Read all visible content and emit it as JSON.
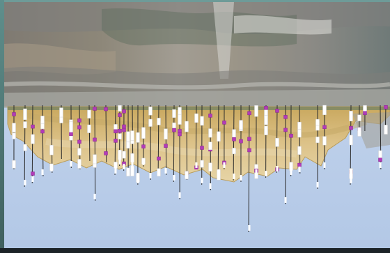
{
  "viewer": {
    "view": "3d-scene",
    "orientation": "inverted",
    "colors": {
      "background": "#b9cde8",
      "terrain_surface": "#8f8a80",
      "mineral_body": "#d9bd7a",
      "drillhole_trace": "#2b2b2b",
      "interval_white": "#ffffff",
      "interval_magenta": "#b23bb8",
      "frame": "#5f8f8c"
    },
    "scene_objects": [
      "terrain-surface",
      "mineral-body",
      "drillholes",
      "assay-intervals"
    ]
  }
}
